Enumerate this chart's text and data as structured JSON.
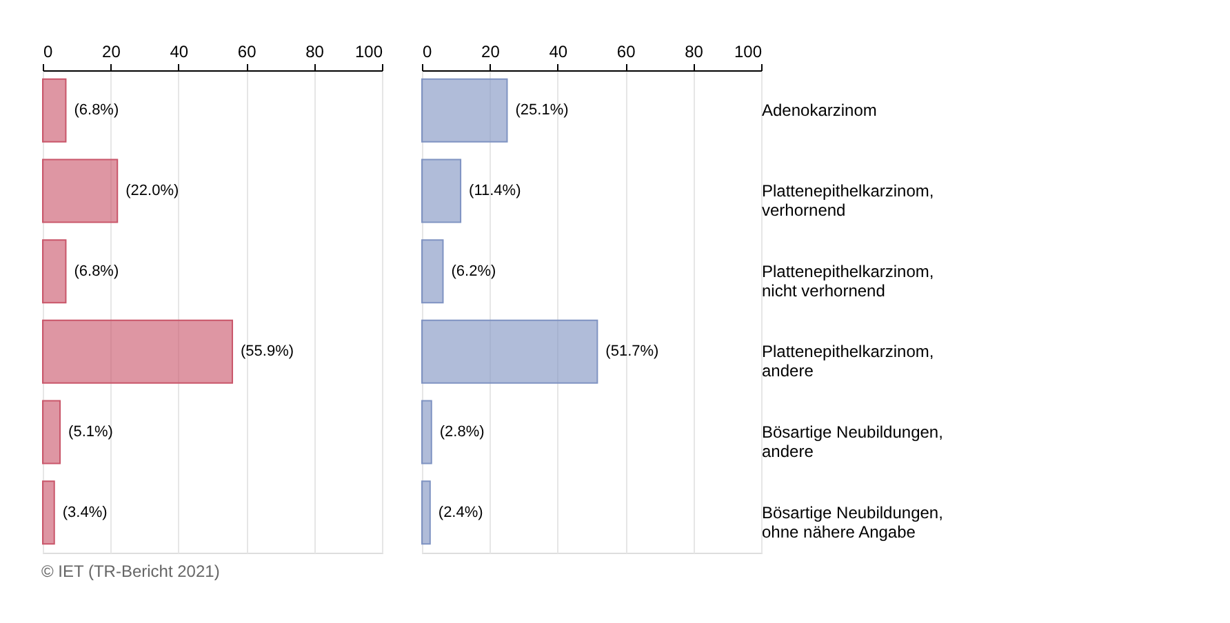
{
  "chart_data": [
    {
      "type": "bar",
      "orientation": "horizontal",
      "categories": [
        null,
        null,
        null,
        null,
        null,
        null
      ],
      "series": [
        {
          "color": "#c9566a",
          "values": [
            6.8,
            22.0,
            6.8,
            55.9,
            5.1,
            3.4
          ],
          "value_labels": [
            "(6.8%)",
            "(22.0%)",
            "(6.8%)",
            "(55.9%)",
            "(5.1%)",
            "(3.4%)"
          ]
        }
      ],
      "xlim": [
        0,
        100
      ],
      "xticks": [
        0,
        20,
        40,
        60,
        80,
        100
      ],
      "grid": "x",
      "tick_labels": "x",
      "annotations": [
        "© IET (TR-Bericht 2021)"
      ]
    },
    {
      "type": "bar",
      "orientation": "horizontal",
      "categories": [
        "Adenokarzinom",
        "Plattenepithelkarzinom, verhornend",
        "Plattenepithelkarzinom, nicht verhornend",
        "Plattenepithelkarzinom, andere",
        "Bösartige Neubildungen, andere",
        "Bösartige Neubildungen, ohne nähere Angabe"
      ],
      "series": [
        {
          "color": "#7f93c2",
          "values": [
            25.1,
            11.4,
            6.2,
            51.7,
            2.8,
            2.4
          ],
          "value_labels": [
            "(25.1%)",
            "(11.4%)",
            "(6.2%)",
            "(51.7%)",
            "(2.8%)",
            "(2.4%)"
          ]
        }
      ],
      "xlim": [
        0,
        100
      ],
      "xticks": [
        0,
        20,
        40,
        60,
        80,
        100
      ],
      "grid": "x"
    }
  ]
}
